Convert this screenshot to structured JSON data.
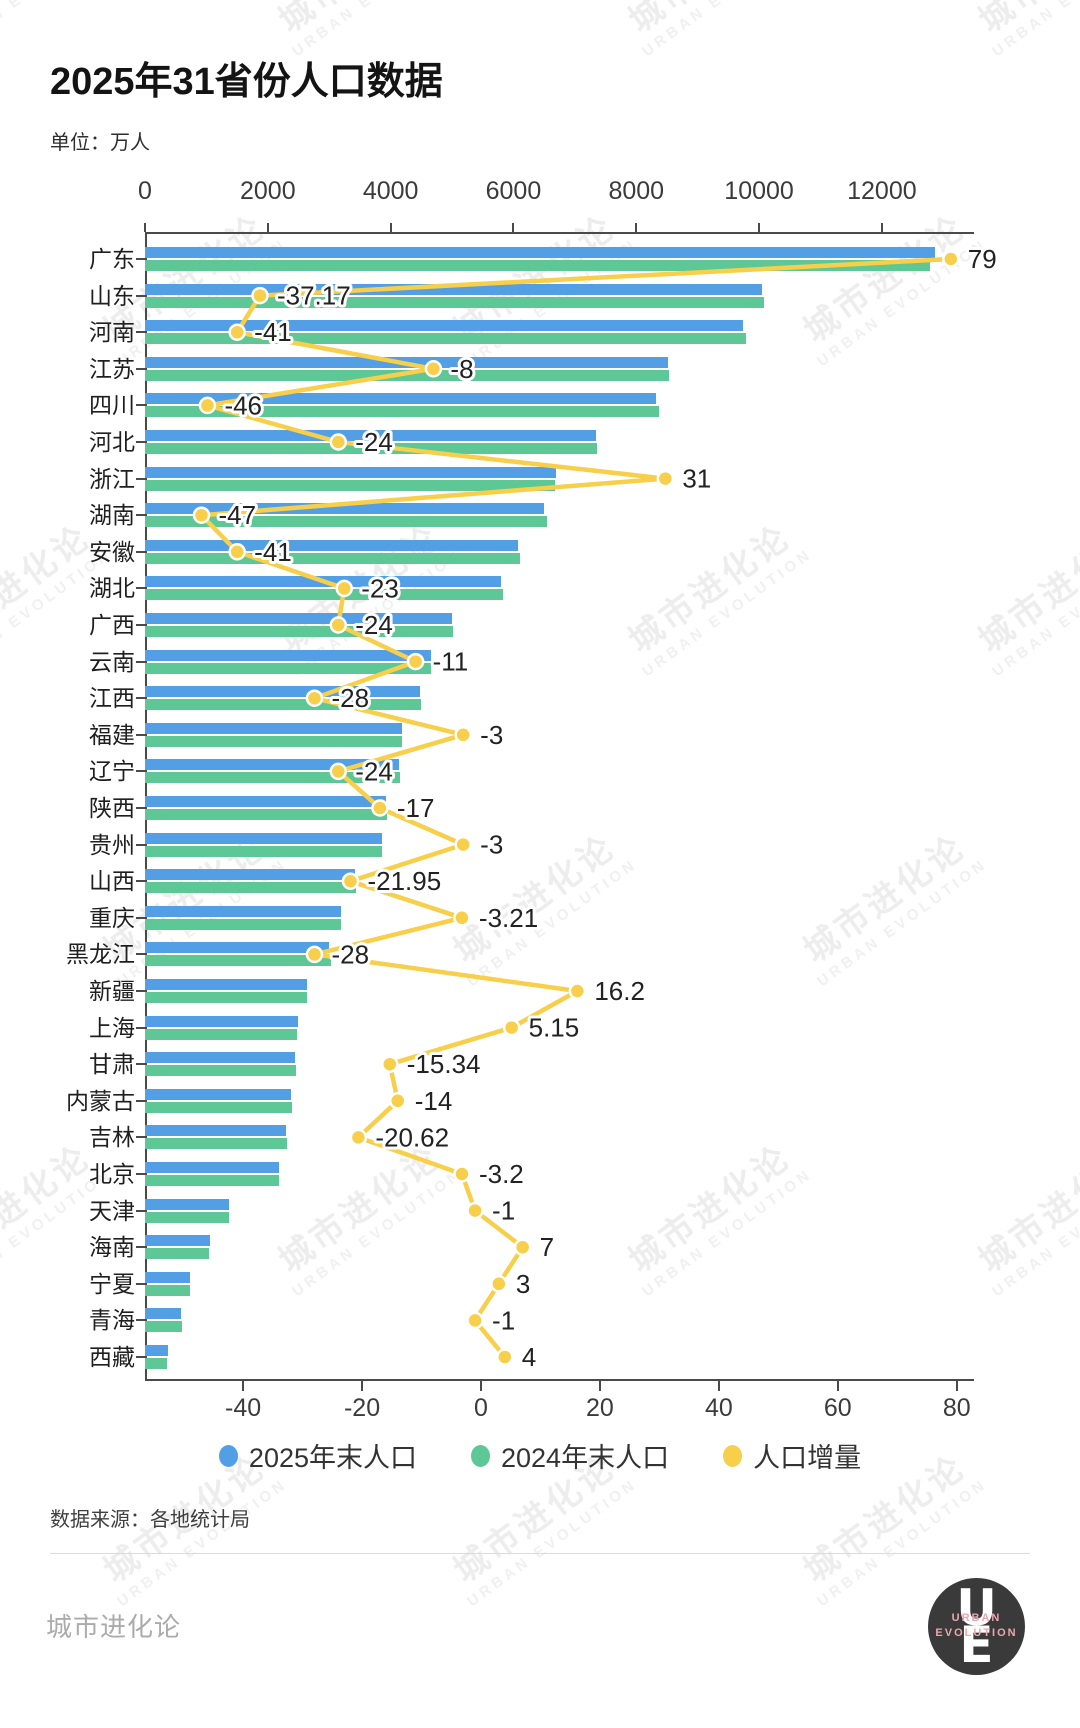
{
  "title": "2025年31省份人口数据",
  "unit_label": "单位：万人",
  "source": "数据来源：各地统计局",
  "footer": {
    "brand": "城市进化论"
  },
  "logo": {
    "monogram_top": "U",
    "monogram_bottom": "E",
    "line1": "URBAN",
    "line2": "EVOLUTION"
  },
  "watermark": {
    "cn": "城市进化论",
    "en": "URBAN EVOLUTION"
  },
  "legend": [
    {
      "label": "2025年末人口",
      "color": "#529fe6"
    },
    {
      "label": "2024年末人口",
      "color": "#5dc795"
    },
    {
      "label": "人口增量",
      "color": "#f7cf4a"
    }
  ],
  "chart_data": {
    "type": "bar",
    "orientation": "horizontal",
    "title": "2025年31省份人口数据",
    "unit": "万人",
    "grid": false,
    "legend_position": "bottom",
    "categories": [
      "广东",
      "山东",
      "河南",
      "江苏",
      "四川",
      "河北",
      "浙江",
      "湖南",
      "安徽",
      "湖北",
      "广西",
      "云南",
      "江西",
      "福建",
      "辽宁",
      "陕西",
      "贵州",
      "山西",
      "重庆",
      "黑龙江",
      "新疆",
      "上海",
      "甘肃",
      "内蒙古",
      "吉林",
      "北京",
      "天津",
      "海南",
      "宁夏",
      "青海",
      "西藏"
    ],
    "series": [
      {
        "name": "2025年末人口",
        "type": "bar",
        "color": "#529fe6",
        "values": [
          12859,
          10043,
          9744,
          8518,
          8318,
          7344,
          6701,
          6492,
          6069,
          5802,
          4997,
          4651,
          4474,
          4185,
          4133,
          3931,
          3858,
          3419,
          3187,
          3001,
          2646,
          2485,
          2437,
          2378,
          2296,
          2180,
          1363,
          1055,
          734,
          594,
          370
        ]
      },
      {
        "name": "2024年末人口",
        "type": "bar",
        "color": "#5dc795",
        "values": [
          12780,
          10080,
          9785,
          8526,
          8364,
          7368,
          6670,
          6539,
          6110,
          5825,
          5021,
          4662,
          4502,
          4188,
          4157,
          3948,
          3861,
          3441,
          3190,
          3029,
          2630,
          2480,
          2452,
          2392,
          2317,
          2183,
          1364,
          1048,
          731,
          595,
          366
        ]
      },
      {
        "name": "人口增量",
        "type": "line",
        "color": "#f7cf4a",
        "values": [
          79,
          -37.17,
          -41,
          -8,
          -46,
          -24,
          31,
          -47,
          -41,
          -23,
          -24,
          -11,
          -28,
          -3,
          -24,
          -17,
          -3,
          -21.95,
          -3.21,
          -28,
          16.2,
          5.15,
          -15.34,
          -14,
          -20.62,
          -3.2,
          -1,
          7,
          3,
          -1,
          4
        ],
        "labels": [
          "79",
          "-37.17",
          "-41",
          "-8",
          "-46",
          "-24",
          "31",
          "-47",
          "-41",
          "-23",
          "-24",
          "-11",
          "-28",
          "-3",
          "-24",
          "-17",
          "-3",
          "-21.95",
          "-3.21",
          "-28",
          "16.2",
          "5.15",
          "-15.34",
          "-14",
          "-20.62",
          "-3.2",
          "-1",
          "7",
          "3",
          "-1",
          "4"
        ]
      }
    ],
    "top_axis": {
      "ticks": [
        0,
        2000,
        4000,
        6000,
        8000,
        10000,
        12000
      ],
      "max": 13500
    },
    "bottom_axis": {
      "ticks": [
        -40,
        -20,
        0,
        20,
        40,
        60,
        80
      ],
      "min": -56.5,
      "max": 82.9
    }
  }
}
